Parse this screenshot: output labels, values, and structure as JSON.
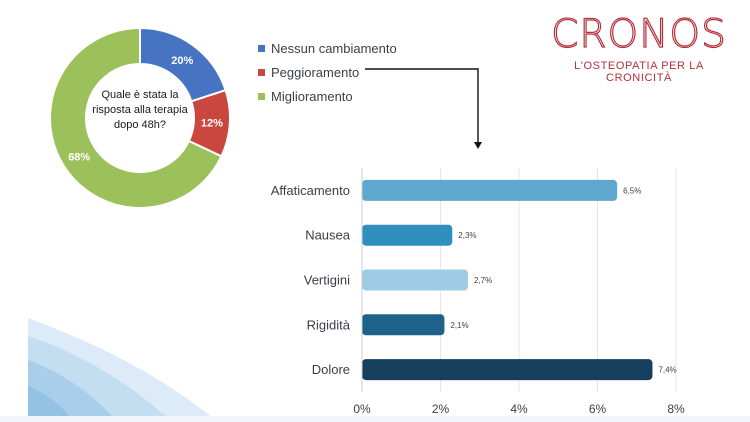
{
  "logo": {
    "name": "CRONOS",
    "tagline": "L'OSTEOPATIA PER LA CRONICITÀ",
    "color": "#b5303a"
  },
  "donut": {
    "question": "Quale è stata la risposta alla terapia dopo 48h?"
  },
  "chart_data": [
    {
      "type": "pie",
      "variant": "donut",
      "title": "",
      "slices": [
        {
          "label": "Nessun cambiamento",
          "value": 20,
          "display": "20%",
          "color": "#4674c2"
        },
        {
          "label": "Peggioramento",
          "value": 12,
          "display": "12%",
          "color": "#c9473f"
        },
        {
          "label": "Miglioramento",
          "value": 68,
          "display": "68%",
          "color": "#9cc15a"
        }
      ],
      "legend_position": "right"
    },
    {
      "type": "bar",
      "orientation": "horizontal",
      "title": "",
      "categories": [
        "Affaticamento",
        "Nausea",
        "Vertigini",
        "Rigidità",
        "Dolore"
      ],
      "values": [
        6.5,
        2.3,
        2.7,
        2.1,
        7.4
      ],
      "labels": [
        "6,5%",
        "2,3%",
        "2,7%",
        "2,1%",
        "7,4%"
      ],
      "colors": [
        "#5ea7cf",
        "#2f8fbf",
        "#9fcbe4",
        "#1e6289",
        "#163f5e"
      ],
      "xlim": [
        0,
        8
      ],
      "ticks": [
        0,
        2,
        4,
        6,
        8
      ],
      "tick_labels": [
        "0%",
        "2%",
        "4%",
        "6%",
        "8%"
      ],
      "xlabel": "",
      "ylabel": "",
      "grid": "vertical"
    }
  ]
}
